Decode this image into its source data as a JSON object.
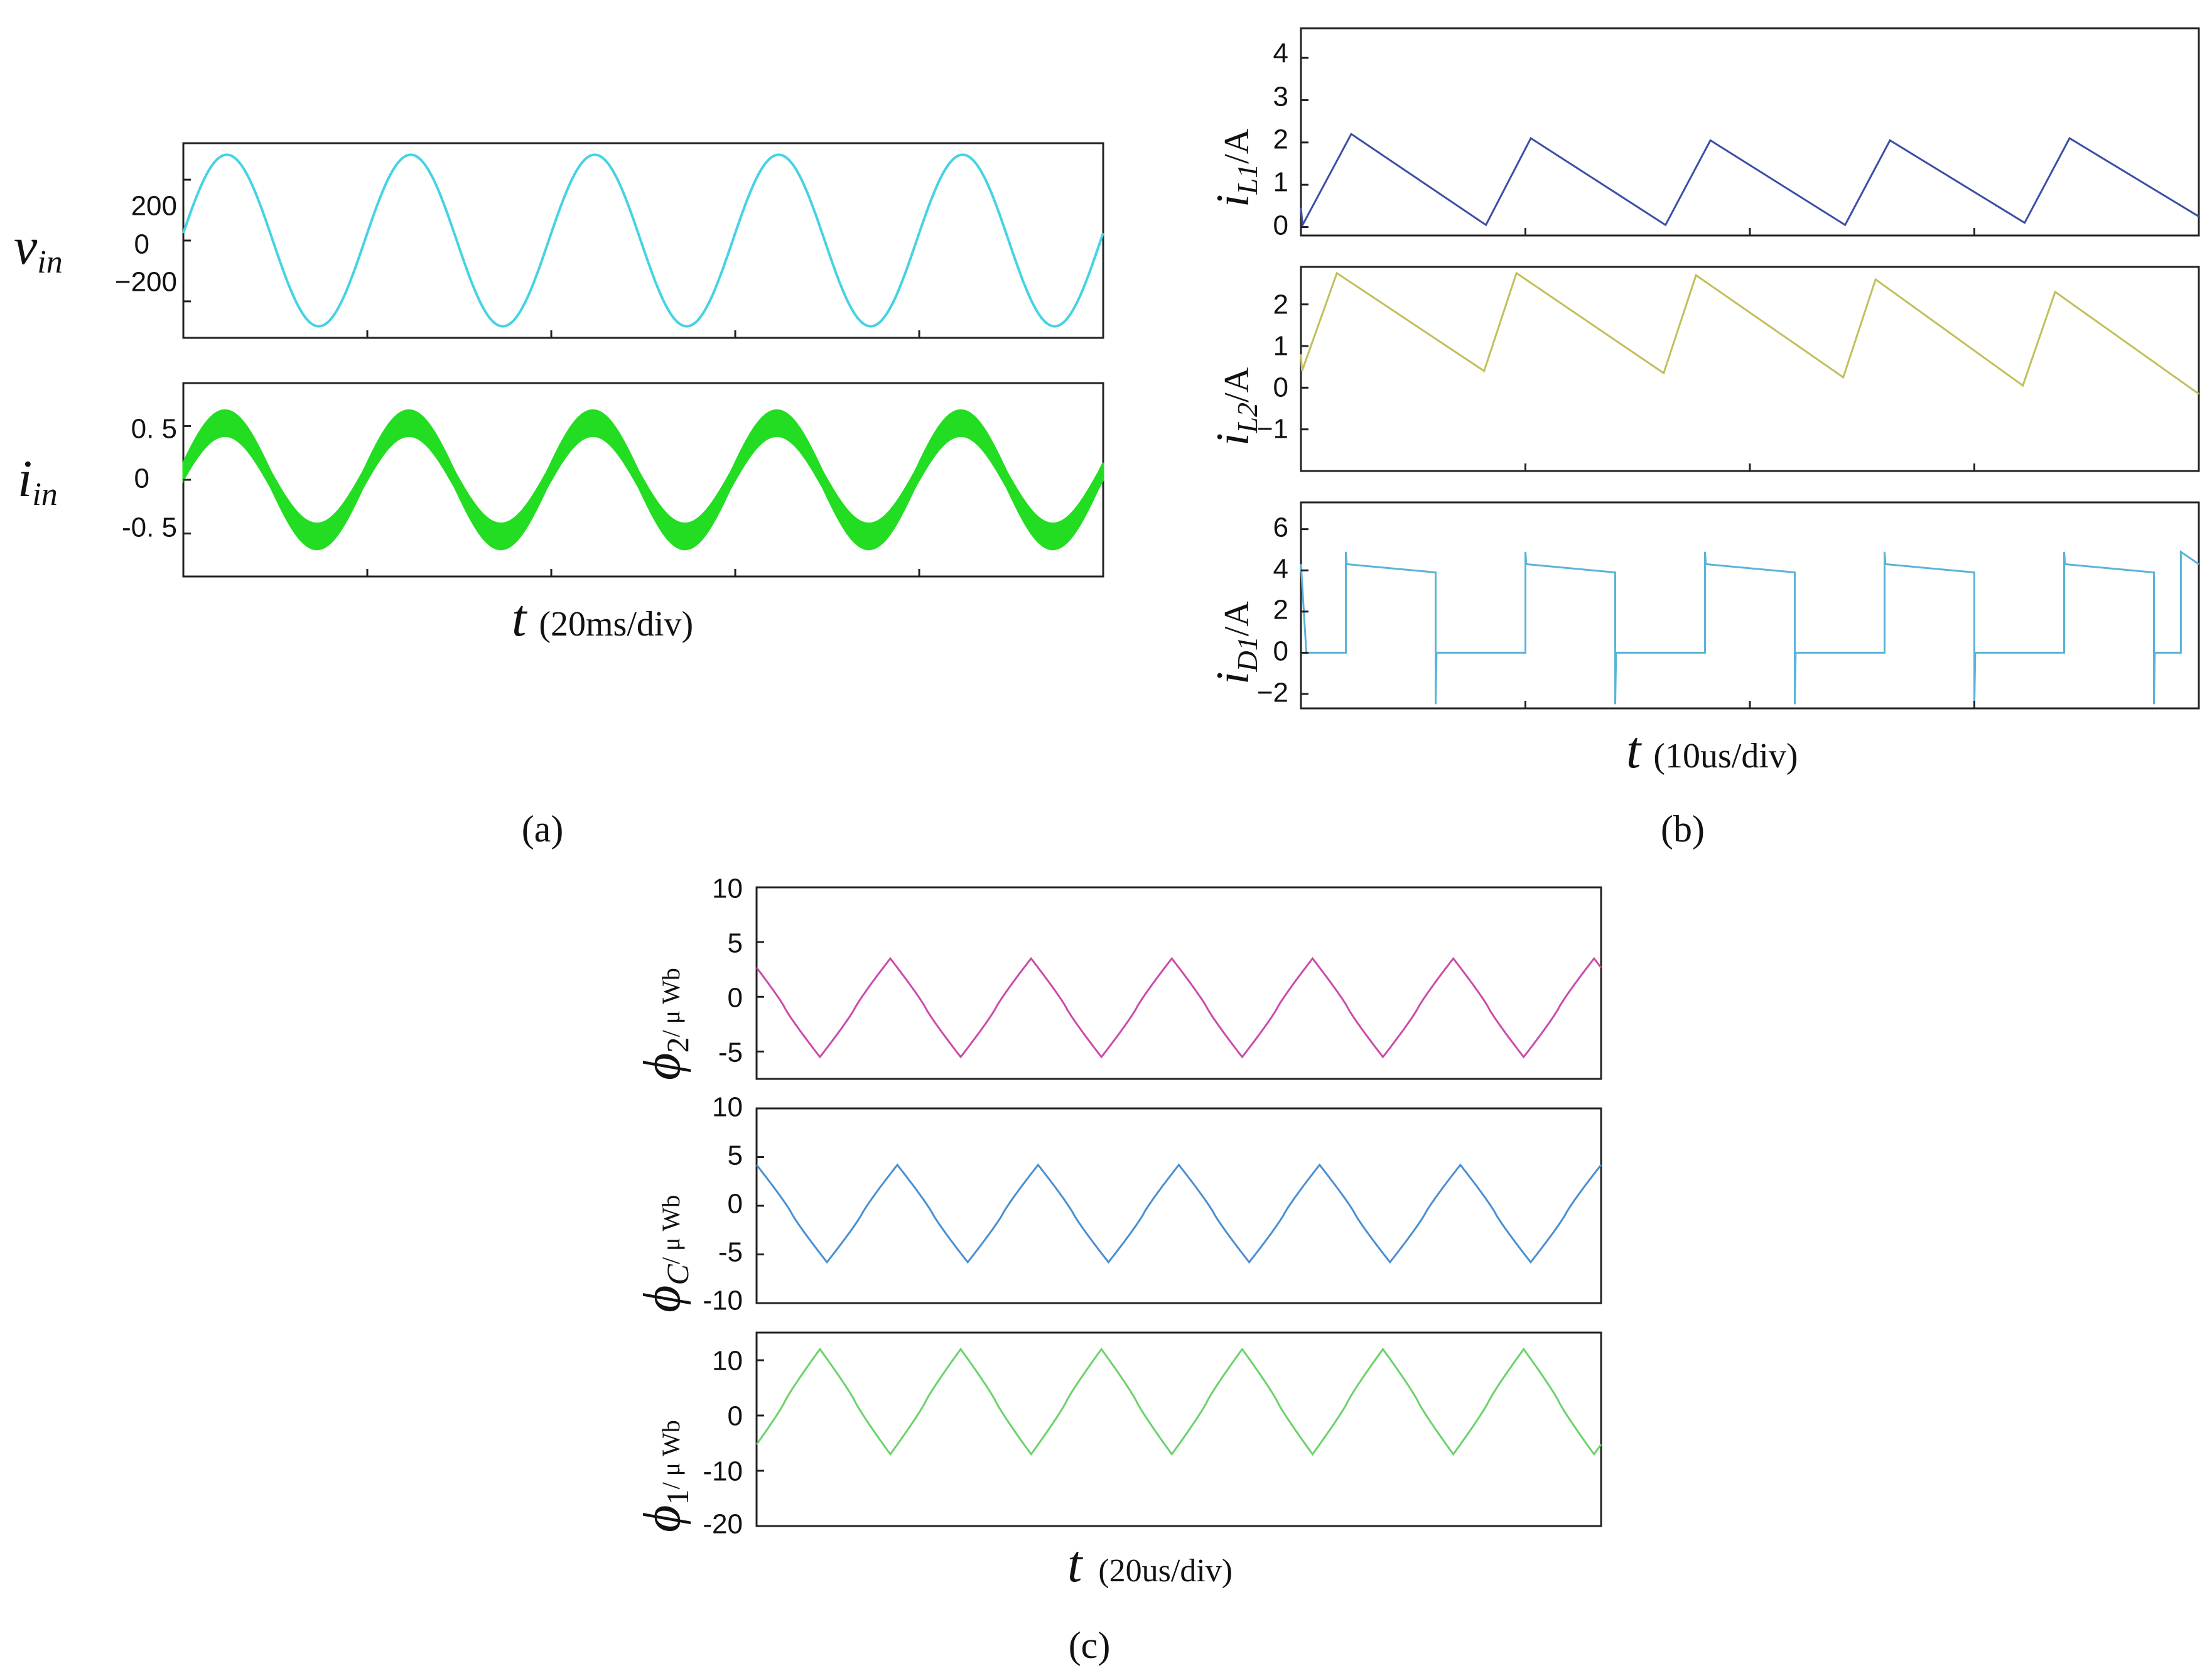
{
  "figure_captions": {
    "a": "(a)",
    "b": "(b)",
    "c": "(c)"
  },
  "chart_data": [
    {
      "id": "a1",
      "type": "line",
      "panel": "a",
      "ylabel_main": "v",
      "ylabel_sub": "in",
      "yticks": [
        200,
        0,
        -200
      ],
      "ytick_labels": [
        "200",
        "0",
        "−200"
      ],
      "ylim": [
        -320,
        320
      ],
      "xlim": [
        0,
        100
      ],
      "series": [
        {
          "name": "v_in",
          "color": "#45d3e3",
          "wave": "sine",
          "amplitude": 282,
          "period_ms": 20,
          "phase_deg": 5
        }
      ]
    },
    {
      "id": "a2",
      "type": "line",
      "panel": "a",
      "ylabel_main": "i",
      "ylabel_sub": "in",
      "yticks": [
        0.5,
        0,
        -0.5
      ],
      "ytick_labels": [
        "0. 5",
        "0",
        "-0. 5"
      ],
      "ylim": [
        -0.9,
        0.9
      ],
      "xlim": [
        0,
        100
      ],
      "xlabel_var": "t",
      "xlabel_unit": "(20ms/div)",
      "series": [
        {
          "name": "i_in",
          "color": "#22dd22",
          "wave": "sine-band",
          "amplitude": 0.62,
          "ripple": 0.12,
          "period_ms": 20
        }
      ]
    },
    {
      "id": "b1",
      "type": "line",
      "panel": "b",
      "ylabel_main": "i",
      "ylabel_sub": "L1",
      "ylabel_unit": "/A",
      "yticks": [
        0,
        1,
        2,
        3,
        4
      ],
      "ytick_labels": [
        "0",
        "1",
        "2",
        "3",
        "4"
      ],
      "ylim": [
        -0.2,
        4.7
      ],
      "xlim": [
        0,
        50
      ],
      "series": [
        {
          "name": "i_L1",
          "color": "#3c4fa6",
          "wave": "sawtooth",
          "peaks": [
            2.2,
            2.1,
            2.05,
            2.05,
            2.1
          ],
          "troughs": [
            0.05,
            0.05,
            0.05,
            0.1,
            0.25
          ]
        }
      ]
    },
    {
      "id": "b2",
      "type": "line",
      "panel": "b",
      "ylabel_main": "i",
      "ylabel_sub": "L2",
      "ylabel_unit": "/A",
      "yticks": [
        2,
        1,
        0,
        -1
      ],
      "ytick_labels": [
        "2",
        "1",
        "0",
        "−1"
      ],
      "ylim": [
        -2,
        2.9
      ],
      "xlim": [
        0,
        50
      ],
      "series": [
        {
          "name": "i_L2",
          "color": "#c2bf5a",
          "wave": "sawtooth",
          "peaks": [
            2.75,
            2.75,
            2.7,
            2.6,
            2.3
          ],
          "troughs": [
            0.4,
            0.35,
            0.25,
            0.05,
            -0.15
          ]
        }
      ]
    },
    {
      "id": "b3",
      "type": "line",
      "panel": "b",
      "ylabel_main": "i",
      "ylabel_sub": "D1",
      "ylabel_unit": "/A",
      "yticks": [
        6,
        4,
        2,
        0,
        -2
      ],
      "ytick_labels": [
        "6",
        "4",
        "2",
        "0",
        "−2"
      ],
      "ylim": [
        -2.7,
        7.3
      ],
      "xlim": [
        0,
        50
      ],
      "xlabel_var": "t",
      "xlabel_unit": "(10us/div)",
      "series": [
        {
          "name": "i_D1",
          "color": "#5ab4d8",
          "wave": "pulse",
          "high_start": 4.3,
          "high_end": 3.9,
          "low": 0,
          "spike_high": 4.9,
          "spike_low": -2.5
        }
      ]
    },
    {
      "id": "c1",
      "type": "line",
      "panel": "c",
      "ylabel_main": "ϕ",
      "ylabel_sub": "2",
      "ylabel_unit": "/ μ Wb",
      "yticks": [
        10,
        5,
        0,
        -5
      ],
      "ytick_labels": [
        "10",
        "5",
        "0",
        "-5"
      ],
      "ylim": [
        -7.5,
        10
      ],
      "xlim": [
        0,
        120
      ],
      "series": [
        {
          "name": "phi_2",
          "color": "#cc4aaa",
          "wave": "triangle",
          "max": 3.5,
          "min": -5.5
        }
      ]
    },
    {
      "id": "c2",
      "type": "line",
      "panel": "c",
      "ylabel_main": "ϕ",
      "ylabel_sub": "C",
      "ylabel_unit": "/ μ Wb",
      "yticks": [
        10,
        5,
        0,
        -5,
        -10
      ],
      "ytick_labels": [
        "10",
        "5",
        "0",
        "-5",
        "-10"
      ],
      "ylim": [
        -10,
        10
      ],
      "xlim": [
        0,
        120
      ],
      "series": [
        {
          "name": "phi_C",
          "color": "#4a8fd0",
          "wave": "triangle",
          "max": 4.2,
          "min": -5.8
        }
      ]
    },
    {
      "id": "c3",
      "type": "line",
      "panel": "c",
      "ylabel_main": "ϕ",
      "ylabel_sub": "1",
      "ylabel_unit": "/ μ Wb",
      "yticks": [
        10,
        0,
        -10,
        -20
      ],
      "ytick_labels": [
        "10",
        "0",
        "-10",
        "-20"
      ],
      "ylim": [
        -20,
        15
      ],
      "xlim": [
        0,
        120
      ],
      "xlabel_var": "t",
      "xlabel_unit": "(20us/div)",
      "series": [
        {
          "name": "phi_1",
          "color": "#6bd26b",
          "wave": "triangle",
          "max": 12,
          "min": -7
        }
      ]
    }
  ]
}
